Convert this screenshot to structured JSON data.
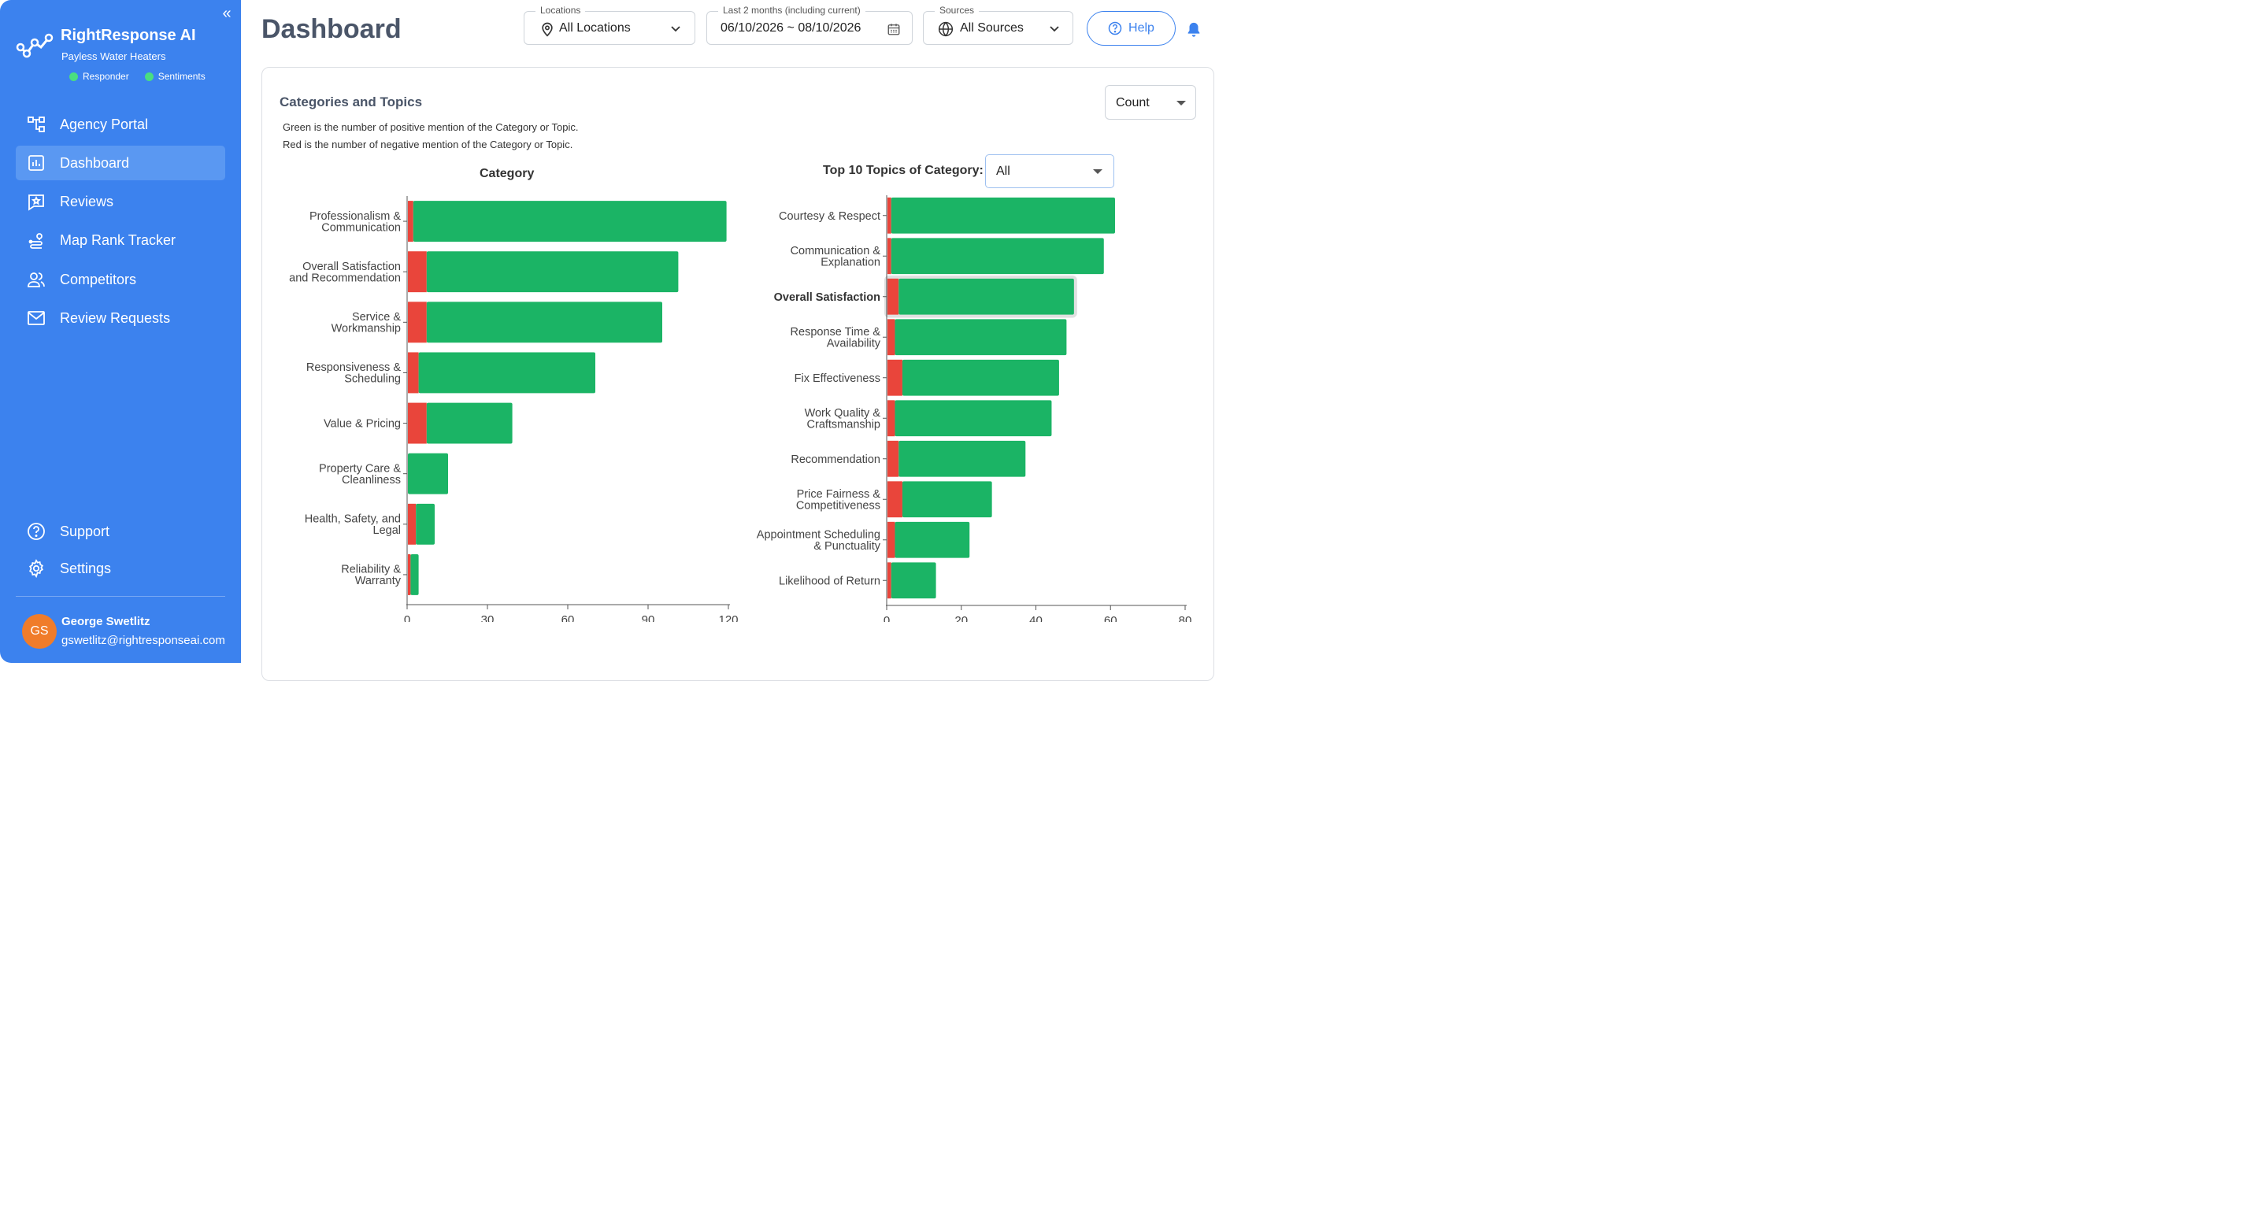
{
  "sidebar": {
    "brand": {
      "title": "RightResponse AI",
      "subtitle": "Payless Water Heaters"
    },
    "status": [
      {
        "label": "Responder",
        "color": "#4ade80"
      },
      {
        "label": "Sentiments",
        "color": "#4ade80"
      }
    ],
    "nav": [
      {
        "label": "Agency Portal",
        "icon": "hierarchy-icon",
        "active": false
      },
      {
        "label": "Dashboard",
        "icon": "bar-chart-icon",
        "active": true
      },
      {
        "label": "Reviews",
        "icon": "review-icon",
        "active": false
      },
      {
        "label": "Map Rank Tracker",
        "icon": "map-route-icon",
        "active": false
      },
      {
        "label": "Competitors",
        "icon": "users-icon",
        "active": false
      },
      {
        "label": "Review Requests",
        "icon": "mail-icon",
        "active": false
      }
    ],
    "nav_bottom": [
      {
        "label": "Support",
        "icon": "question-icon"
      },
      {
        "label": "Settings",
        "icon": "gear-icon"
      }
    ],
    "user": {
      "initials": "GS",
      "name": "George Swetlitz",
      "email": "gswetlitz@rightresponseai.com"
    }
  },
  "header": {
    "title": "Dashboard",
    "locations": {
      "label": "Locations",
      "value": "All Locations"
    },
    "date_range": {
      "label": "Last 2 months (including current)",
      "value": "06/10/2026 ~ 08/10/2026"
    },
    "sources": {
      "label": "Sources",
      "value": "All Sources"
    },
    "help_label": "Help"
  },
  "card": {
    "title": "Categories and Topics",
    "note_green": "Green is the number of positive mention of the Category or Topic.",
    "note_red": "Red is the number of negative mention of the Category or Topic.",
    "metric_select": "Count",
    "topics_label": "Top 10 Topics of Category:",
    "topics_select": "All"
  },
  "colors": {
    "positive": "#1bb465",
    "negative": "#e9453b",
    "accent": "#3c82ee"
  },
  "chart_data": [
    {
      "type": "bar",
      "orientation": "horizontal",
      "stacked": true,
      "title": "Category",
      "categories": [
        "Professionalism & Communication",
        "Overall Satisfaction and Recommendation",
        "Service & Workmanship",
        "Responsiveness & Scheduling",
        "Value & Pricing",
        "Property Care & Cleanliness",
        "Health, Safety, and Legal",
        "Reliability & Warranty"
      ],
      "series": [
        {
          "color": "#e9453b",
          "values": [
            2,
            7,
            7,
            4,
            7,
            0,
            3,
            1
          ]
        },
        {
          "color": "#1bb465",
          "values": [
            117,
            94,
            88,
            66,
            32,
            15,
            7,
            3
          ]
        }
      ],
      "xlim": [
        0,
        120
      ],
      "xticks": [
        0,
        30,
        60,
        90,
        120
      ]
    },
    {
      "type": "bar",
      "orientation": "horizontal",
      "stacked": true,
      "title": "Top 10 Topics of Category:",
      "categories": [
        "Courtesy & Respect",
        "Communication & Explanation",
        "Overall Satisfaction",
        "Response Time & Availability",
        "Fix Effectiveness",
        "Work Quality & Craftsmanship",
        "Recommendation",
        "Price Fairness & Competitiveness",
        "Appointment Scheduling & Punctuality",
        "Likelihood of Return"
      ],
      "highlighted": "Overall Satisfaction",
      "series": [
        {
          "color": "#e9453b",
          "values": [
            1,
            1,
            3,
            2,
            4,
            2,
            3,
            4,
            2,
            1
          ]
        },
        {
          "color": "#1bb465",
          "values": [
            60,
            57,
            47,
            46,
            42,
            42,
            34,
            24,
            20,
            12
          ]
        }
      ],
      "xlim": [
        0,
        80
      ],
      "xticks": [
        0,
        20,
        40,
        60,
        80
      ]
    }
  ]
}
